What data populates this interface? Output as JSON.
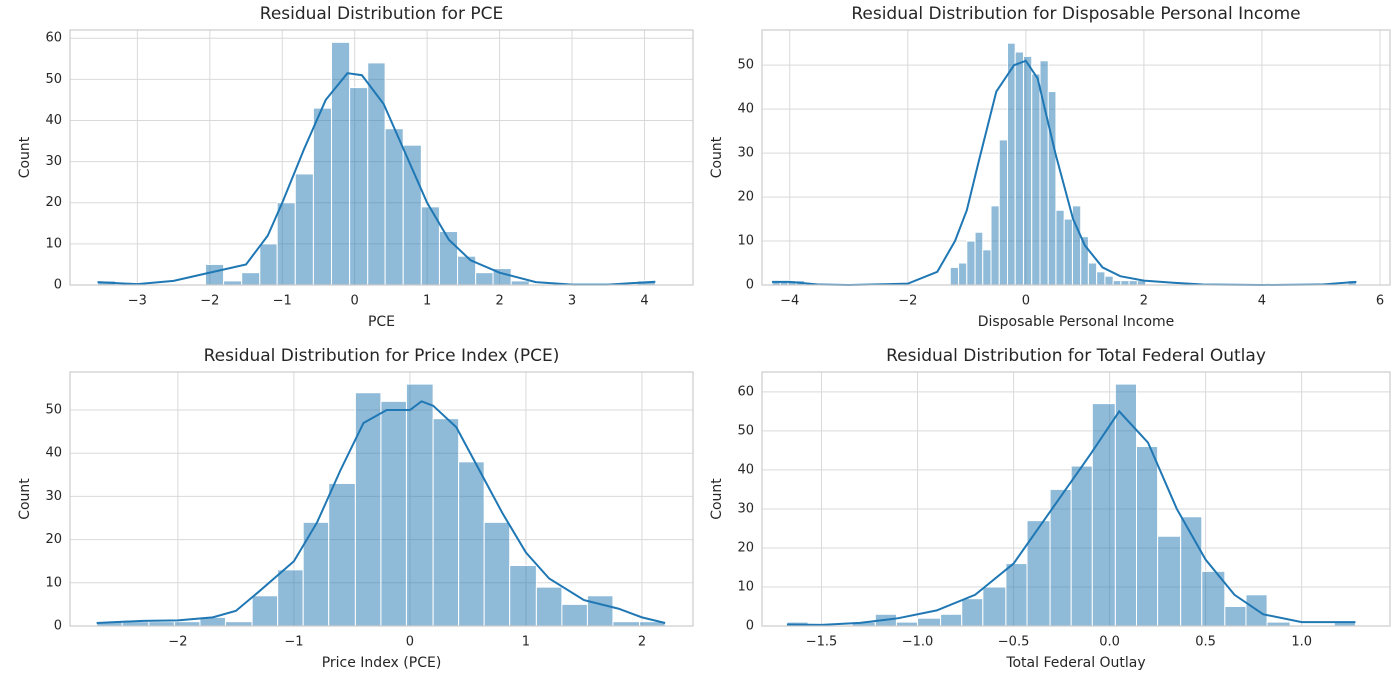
{
  "chart_data": [
    {
      "type": "histogram",
      "title": "Residual Distribution for PCE",
      "xlabel": "PCE",
      "ylabel": "Count",
      "color": "#1f77b4",
      "grid": true,
      "bins": [
        -3.55,
        -3.3,
        -3.05,
        -2.8,
        -2.56,
        -2.31,
        -2.06,
        -1.81,
        -1.56,
        -1.31,
        -1.07,
        -0.82,
        -0.57,
        -0.32,
        -0.07,
        0.18,
        0.42,
        0.67,
        0.92,
        1.17,
        1.42,
        1.67,
        1.91,
        2.16,
        2.41,
        2.66,
        2.91,
        3.16,
        3.4,
        3.65,
        3.9,
        4.15
      ],
      "values": [
        1,
        0,
        0,
        0,
        0,
        0,
        5,
        1,
        3,
        10,
        20,
        27,
        43,
        59,
        48,
        54,
        38,
        34,
        19,
        13,
        7,
        3,
        4,
        1,
        0,
        0,
        0,
        0,
        0,
        0,
        1
      ],
      "kde": {
        "x": [
          -3.55,
          -3,
          -2.5,
          -2,
          -1.5,
          -1.2,
          -1,
          -0.7,
          -0.4,
          -0.1,
          0.1,
          0.4,
          0.7,
          1,
          1.3,
          1.6,
          2,
          2.5,
          3,
          3.5,
          4.15
        ],
        "values": [
          0.7,
          0.2,
          1,
          3,
          5,
          12,
          20,
          33,
          45,
          51.5,
          51,
          44,
          32,
          20,
          11,
          6,
          3,
          0.7,
          0.1,
          0.1,
          0.8
        ]
      },
      "xlim": [
        -3.93,
        4.67
      ],
      "ylim": [
        0,
        62
      ],
      "xticks": [
        {
          "value": -3,
          "label": "−3"
        },
        {
          "value": -2,
          "label": "−2"
        },
        {
          "value": -1,
          "label": "−1"
        },
        0,
        1,
        2,
        3,
        4
      ],
      "yticks": [
        0,
        10,
        20,
        30,
        40,
        50,
        60
      ]
    },
    {
      "type": "histogram",
      "title": "Residual Distribution for Disposable Personal Income",
      "xlabel": "Disposable Personal Income",
      "ylabel": "Count",
      "color": "#1f77b4",
      "grid": true,
      "bins": [
        -4.3,
        -4.16,
        -4.03,
        -3.89,
        -3.75,
        -3.61,
        -3.48,
        -3.34,
        -3.2,
        -3.06,
        -2.93,
        -2.79,
        -2.65,
        -2.51,
        -2.38,
        -2.24,
        -2.1,
        -1.96,
        -1.83,
        -1.69,
        -1.55,
        -1.41,
        -1.28,
        -1.14,
        -1.0,
        -0.86,
        -0.73,
        -0.59,
        -0.45,
        -0.31,
        -0.18,
        -0.04,
        0.1,
        0.24,
        0.38,
        0.51,
        0.65,
        0.79,
        0.93,
        1.06,
        1.2,
        1.34,
        1.48,
        1.61,
        1.75,
        1.89,
        2.03,
        2.16,
        2.3,
        2.44,
        2.58,
        2.71,
        2.85,
        2.99,
        3.13,
        3.26,
        3.4,
        3.54,
        3.68,
        3.81,
        3.95,
        4.09,
        4.23,
        4.36,
        4.5,
        4.64,
        4.78,
        4.91,
        5.05,
        5.19,
        5.33,
        5.46,
        5.6
      ],
      "values": [
        1,
        1,
        1,
        1,
        0,
        0,
        0,
        0,
        0,
        0,
        0,
        0,
        0,
        0,
        0,
        0,
        0,
        0,
        0,
        0,
        0,
        0,
        4,
        5,
        10,
        12,
        8,
        18,
        33,
        55,
        53,
        52,
        48,
        51,
        44,
        17,
        15,
        18,
        11,
        5,
        3,
        2,
        1,
        1,
        1,
        1,
        0,
        0,
        0,
        0,
        0,
        0,
        0,
        0,
        0,
        0,
        0,
        0,
        0,
        0,
        0,
        0,
        0,
        0,
        0,
        0,
        0,
        0,
        0,
        0,
        0,
        1
      ],
      "kde": {
        "x": [
          -4.3,
          -4,
          -3.5,
          -3,
          -2,
          -1.5,
          -1.2,
          -1,
          -0.8,
          -0.5,
          -0.2,
          0,
          0.2,
          0.5,
          0.8,
          1,
          1.3,
          1.6,
          2,
          2.5,
          3,
          4,
          5,
          5.6
        ],
        "values": [
          0.7,
          0.7,
          0.1,
          0,
          0.3,
          3,
          10,
          17,
          28,
          44,
          50,
          51,
          47,
          30,
          15,
          9,
          4,
          2,
          1,
          0.5,
          0.1,
          0,
          0.1,
          0.7
        ]
      },
      "xlim": [
        -4.47,
        6.17
      ],
      "ylim": [
        0,
        58
      ],
      "xticks": [
        {
          "value": -4,
          "label": "−4"
        },
        {
          "value": -2,
          "label": "−2"
        },
        0,
        2,
        4,
        6
      ],
      "yticks": [
        0,
        10,
        20,
        30,
        40,
        50
      ]
    },
    {
      "type": "histogram",
      "title": "Residual Distribution for Price Index (PCE)",
      "xlabel": "Price Index (PCE)",
      "ylabel": "Count",
      "color": "#1f77b4",
      "grid": true,
      "bins": [
        -2.7,
        -2.48,
        -2.25,
        -2.03,
        -1.81,
        -1.59,
        -1.36,
        -1.14,
        -0.92,
        -0.7,
        -0.47,
        -0.25,
        -0.03,
        0.2,
        0.42,
        0.64,
        0.86,
        1.09,
        1.31,
        1.53,
        1.75,
        1.98,
        2.2
      ],
      "values": [
        1,
        1,
        1,
        1,
        2,
        1,
        7,
        13,
        24,
        33,
        54,
        52,
        56,
        48,
        38,
        24,
        14,
        9,
        5,
        7,
        1,
        1
      ],
      "kde": {
        "x": [
          -2.7,
          -2.3,
          -2,
          -1.7,
          -1.5,
          -1.3,
          -1,
          -0.8,
          -0.6,
          -0.4,
          -0.2,
          0,
          0.1,
          0.2,
          0.4,
          0.6,
          0.8,
          1,
          1.2,
          1.5,
          1.8,
          2,
          2.2
        ],
        "values": [
          0.7,
          1.2,
          1.3,
          2,
          3.5,
          8,
          15,
          24,
          36,
          47,
          50,
          50,
          52,
          51,
          46,
          36,
          26,
          17,
          11,
          6,
          4,
          2,
          0.7
        ]
      },
      "xlim": [
        -2.93,
        2.44
      ],
      "ylim": [
        0,
        58.8
      ],
      "xticks": [
        {
          "value": -2,
          "label": "−2"
        },
        {
          "value": -1,
          "label": "−1"
        },
        0,
        1,
        2
      ],
      "yticks": [
        0,
        10,
        20,
        30,
        40,
        50
      ]
    },
    {
      "type": "histogram",
      "title": "Residual Distribution for Total Federal Outlay",
      "xlabel": "Total Federal Outlay",
      "ylabel": "Count",
      "color": "#1f77b4",
      "grid": true,
      "bins": [
        -1.68,
        -1.57,
        -1.45,
        -1.34,
        -1.22,
        -1.11,
        -1.0,
        -0.88,
        -0.77,
        -0.66,
        -0.54,
        -0.43,
        -0.31,
        -0.2,
        -0.09,
        0.03,
        0.14,
        0.25,
        0.37,
        0.48,
        0.6,
        0.71,
        0.82,
        0.94,
        1.05,
        1.17,
        1.28
      ],
      "values": [
        1,
        0,
        0,
        1,
        3,
        1,
        2,
        3,
        7,
        10,
        16,
        27,
        35,
        41,
        57,
        62,
        46,
        23,
        28,
        14,
        5,
        8,
        1,
        0,
        0,
        1
      ],
      "kde": {
        "x": [
          -1.68,
          -1.5,
          -1.3,
          -1.1,
          -0.9,
          -0.7,
          -0.5,
          -0.3,
          -0.1,
          0.05,
          0.2,
          0.35,
          0.5,
          0.65,
          0.8,
          1.0,
          1.2,
          1.28
        ],
        "values": [
          0.4,
          0.3,
          0.8,
          2,
          4,
          8,
          16,
          30,
          44,
          55,
          47,
          30,
          17,
          8,
          3,
          1,
          1,
          1
        ]
      },
      "xlim": [
        -1.81,
        1.46
      ],
      "ylim": [
        0,
        65.1
      ],
      "xticks": [
        {
          "value": -1.5,
          "label": "−1.5"
        },
        {
          "value": -1,
          "label": "−1.0"
        },
        {
          "value": -0.5,
          "label": "−0.5"
        },
        {
          "value": 0,
          "label": "0.0"
        },
        0.5,
        {
          "value": 1,
          "label": "1.0"
        }
      ],
      "yticks": [
        0,
        10,
        20,
        30,
        40,
        50,
        60
      ]
    }
  ]
}
